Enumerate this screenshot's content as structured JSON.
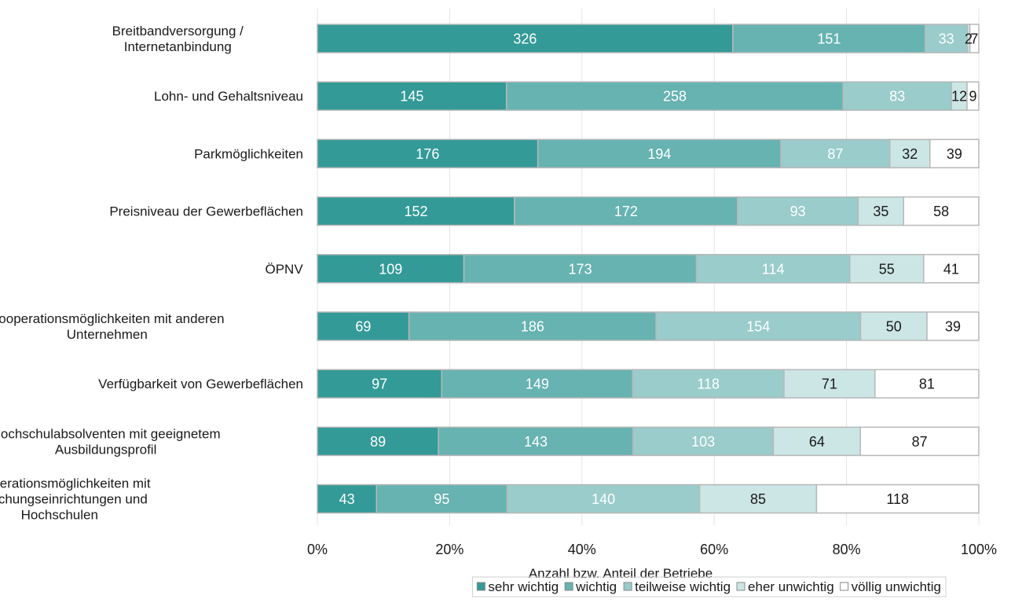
{
  "chart_data": {
    "type": "bar",
    "orientation": "horizontal",
    "stacked": "percent",
    "title": "",
    "xlabel": "Anzahl bzw. Anteil der Betriebe",
    "ylabel": "",
    "xlim": [
      0,
      100
    ],
    "xticks": [
      "0%",
      "20%",
      "40%",
      "60%",
      "80%",
      "100%"
    ],
    "grid": true,
    "legend_position": "bottom",
    "categories": [
      [
        "Breitbandversorgung /",
        "Internetanbindung"
      ],
      [
        "Lohn- und Gehaltsniveau"
      ],
      [
        "Parkmöglichkeiten"
      ],
      [
        "Preisniveau der Gewerbeflächen"
      ],
      [
        "ÖPNV"
      ],
      [
        "Kooperationsmöglichkeiten mit anderen",
        "Unternehmen"
      ],
      [
        "Verfügbarkeit von Gewerbeflächen"
      ],
      [
        "Hochschulabsolventen mit geeignetem",
        "Ausbildungsprofil"
      ],
      [
        "Kooperationsmöglichkeiten mit",
        "Forschungseinrichtungen und",
        "Hochschulen"
      ]
    ],
    "series": [
      {
        "name": "sehr wichtig",
        "color": "#339a97",
        "label_color": "#ffffff",
        "values": [
          326,
          145,
          176,
          152,
          109,
          69,
          97,
          89,
          43
        ]
      },
      {
        "name": "wichtig",
        "color": "#66b3b1",
        "label_color": "#ffffff",
        "values": [
          151,
          258,
          194,
          172,
          173,
          186,
          149,
          143,
          95
        ]
      },
      {
        "name": "teilweise wichtig",
        "color": "#99cccb",
        "label_color": "#ffffff",
        "values": [
          33,
          83,
          87,
          93,
          114,
          154,
          118,
          103,
          140
        ]
      },
      {
        "name": "eher unwichtig",
        "color": "#cce5e5",
        "label_color": "#1a1a1a",
        "values": [
          2,
          12,
          32,
          35,
          55,
          50,
          71,
          64,
          85
        ]
      },
      {
        "name": "völlig unwichtig",
        "color": "#ffffff",
        "label_color": "#1a1a1a",
        "values": [
          7,
          9,
          39,
          58,
          41,
          39,
          81,
          87,
          118
        ]
      }
    ]
  }
}
